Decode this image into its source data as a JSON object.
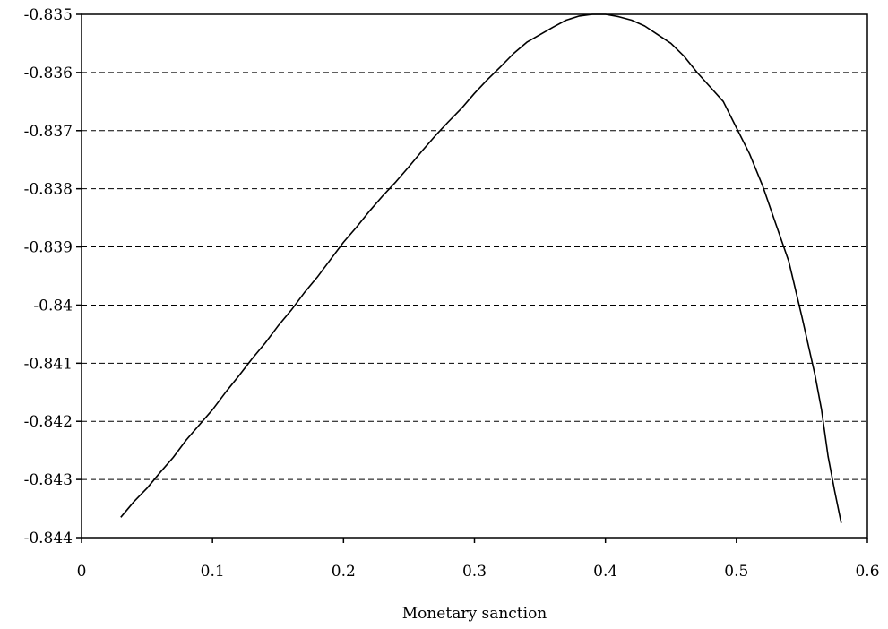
{
  "chart_data": {
    "type": "line",
    "title": "",
    "xlabel": "Monetary sanction",
    "ylabel": "",
    "xlim": [
      0,
      0.6
    ],
    "ylim": [
      -0.844,
      -0.835
    ],
    "xticks": [
      0,
      0.1,
      0.2,
      0.3,
      0.4,
      0.5,
      0.6
    ],
    "xtick_labels": [
      "0",
      "0.1",
      "0.2",
      "0.3",
      "0.4",
      "0.5",
      "0.6"
    ],
    "yticks": [
      -0.835,
      -0.836,
      -0.837,
      -0.838,
      -0.839,
      -0.84,
      -0.841,
      -0.842,
      -0.843,
      -0.844
    ],
    "ytick_labels": [
      "-0.835",
      "-0.836",
      "-0.837",
      "-0.838",
      "-0.839",
      "-0.84",
      "-0.841",
      "-0.842",
      "-0.843",
      "-0.844"
    ],
    "grid": "horizontal dashed",
    "legend": "none",
    "series": [
      {
        "color": "#000000",
        "points": [
          [
            0.03,
            -0.84365
          ],
          [
            0.04,
            -0.84338
          ],
          [
            0.05,
            -0.84315
          ],
          [
            0.06,
            -0.84288
          ],
          [
            0.07,
            -0.84262
          ],
          [
            0.08,
            -0.84232
          ],
          [
            0.09,
            -0.84206
          ],
          [
            0.1,
            -0.8418
          ],
          [
            0.11,
            -0.8415
          ],
          [
            0.12,
            -0.84122
          ],
          [
            0.13,
            -0.84093
          ],
          [
            0.14,
            -0.84066
          ],
          [
            0.15,
            -0.84036
          ],
          [
            0.16,
            -0.84009
          ],
          [
            0.17,
            -0.83979
          ],
          [
            0.18,
            -0.83952
          ],
          [
            0.19,
            -0.83922
          ],
          [
            0.2,
            -0.83892
          ],
          [
            0.21,
            -0.83866
          ],
          [
            0.22,
            -0.83838
          ],
          [
            0.23,
            -0.83812
          ],
          [
            0.24,
            -0.83788
          ],
          [
            0.25,
            -0.83762
          ],
          [
            0.26,
            -0.83735
          ],
          [
            0.27,
            -0.83709
          ],
          [
            0.28,
            -0.83685
          ],
          [
            0.29,
            -0.83662
          ],
          [
            0.3,
            -0.83636
          ],
          [
            0.31,
            -0.83612
          ],
          [
            0.32,
            -0.8359
          ],
          [
            0.33,
            -0.83567
          ],
          [
            0.34,
            -0.83548
          ],
          [
            0.35,
            -0.83535
          ],
          [
            0.36,
            -0.83522
          ],
          [
            0.37,
            -0.8351
          ],
          [
            0.38,
            -0.83503
          ],
          [
            0.39,
            -0.835
          ],
          [
            0.4,
            -0.835
          ],
          [
            0.41,
            -0.83504
          ],
          [
            0.42,
            -0.8351
          ],
          [
            0.43,
            -0.8352
          ],
          [
            0.44,
            -0.83535
          ],
          [
            0.45,
            -0.8355
          ],
          [
            0.46,
            -0.83572
          ],
          [
            0.47,
            -0.836
          ],
          [
            0.48,
            -0.83625
          ],
          [
            0.49,
            -0.8365
          ],
          [
            0.5,
            -0.83695
          ],
          [
            0.51,
            -0.8374
          ],
          [
            0.52,
            -0.83795
          ],
          [
            0.53,
            -0.8386
          ],
          [
            0.54,
            -0.83925
          ],
          [
            0.55,
            -0.8402
          ],
          [
            0.56,
            -0.8412
          ],
          [
            0.565,
            -0.8418
          ],
          [
            0.57,
            -0.8426
          ],
          [
            0.575,
            -0.8432
          ],
          [
            0.58,
            -0.84375
          ]
        ]
      }
    ]
  }
}
